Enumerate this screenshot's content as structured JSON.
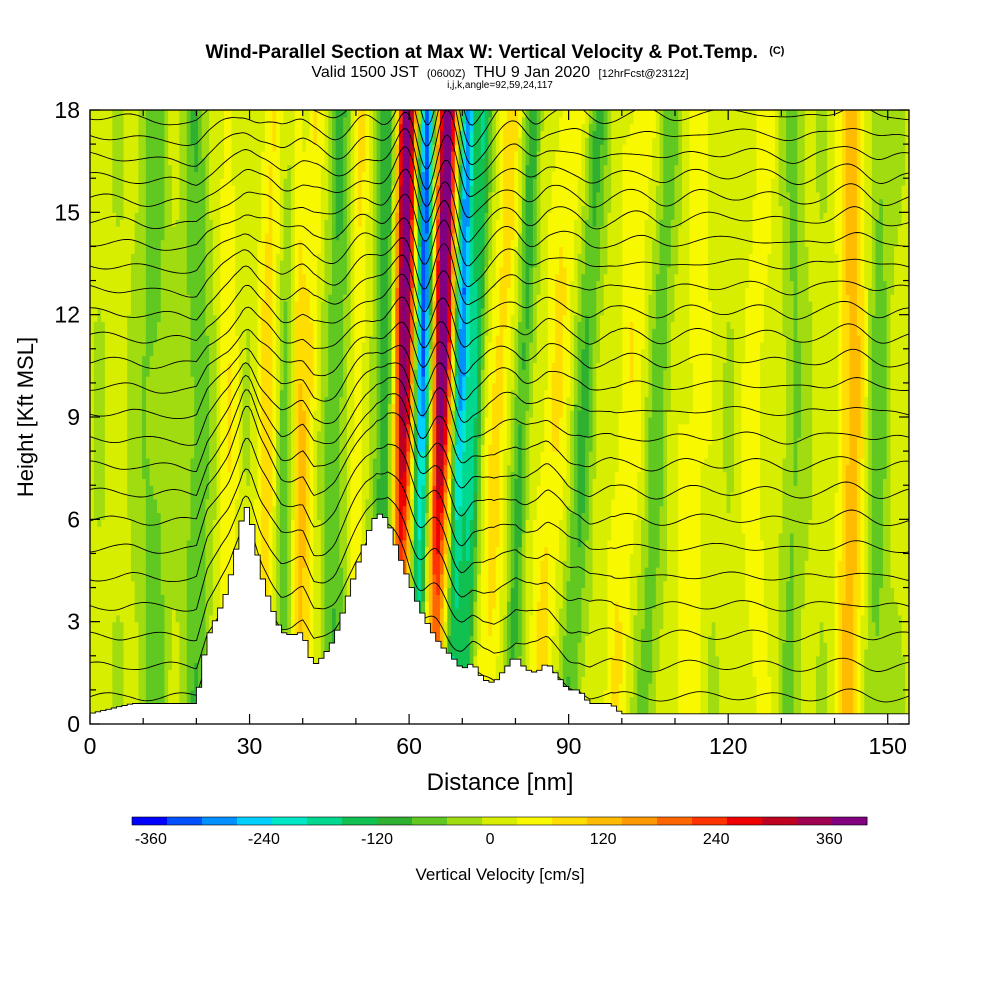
{
  "chart_data": {
    "type": "heatmap",
    "title": "Wind-Parallel Section at Max W: Vertical Velocity & Pot.Temp.",
    "title_mark": "(C)",
    "subtitle_main_1": "Valid 1500 JST",
    "subtitle_small_1": "(0600Z)",
    "subtitle_main_2": "THU 9 Jan 2020",
    "subtitle_small_2": "[12hrFcst@2312z]",
    "subtitle_line2": "i,j,k,angle=92,59,24,117",
    "xlabel": "Distance [nm]",
    "ylabel": "Height [Kft MSL]",
    "xlim": [
      0,
      154
    ],
    "ylim": [
      0,
      18
    ],
    "x_ticks": [
      0,
      30,
      60,
      90,
      120,
      150
    ],
    "y_ticks": [
      0,
      3,
      6,
      9,
      12,
      15,
      18
    ],
    "colorbar": {
      "label": "Vertical Velocity [cm/s]",
      "range": [
        -380,
        400
      ],
      "tick_values": [
        -360,
        -240,
        -120,
        0,
        120,
        240,
        360
      ],
      "tick_labels": [
        "-360",
        "-240",
        "-120",
        "0",
        "120",
        "240",
        "360"
      ],
      "colors": [
        "#0000ff",
        "#0050ff",
        "#0090ff",
        "#00d0ff",
        "#00e8c8",
        "#00d890",
        "#10c050",
        "#30b030",
        "#60c820",
        "#a0dc10",
        "#d8ee00",
        "#f8f800",
        "#ffdd00",
        "#ffbb00",
        "#ff9900",
        "#ff6600",
        "#ff3300",
        "#ee0000",
        "#c00020",
        "#a00050",
        "#800080"
      ]
    },
    "terrain_profile": {
      "x": [
        0,
        8,
        12,
        16,
        20,
        22,
        24,
        26,
        28,
        29,
        30,
        31,
        32,
        34,
        36,
        38,
        40,
        42,
        44,
        46,
        48,
        50,
        52,
        54,
        56,
        58,
        60,
        62,
        64,
        66,
        68,
        70,
        72,
        74,
        76,
        78,
        80,
        82,
        84,
        86,
        88,
        90,
        92,
        94,
        96,
        98,
        100,
        154
      ],
      "y": [
        0.3,
        0.6,
        0.6,
        0.6,
        0.6,
        2.5,
        3.2,
        4.0,
        5.5,
        6.4,
        6.3,
        5.4,
        4.5,
        3.5,
        2.7,
        2.6,
        2.7,
        1.7,
        2.0,
        2.5,
        3.5,
        4.5,
        5.5,
        6.2,
        6.0,
        5.0,
        4.2,
        3.4,
        2.8,
        2.3,
        2.0,
        1.6,
        1.8,
        1.3,
        1.2,
        1.6,
        2.0,
        1.6,
        1.5,
        1.8,
        1.4,
        1.0,
        1.0,
        0.6,
        0.6,
        0.6,
        0.3,
        0.3
      ]
    },
    "vertical_velocity_features": [
      {
        "x": 58.5,
        "halfwidth": 1.8,
        "amplitude": 420,
        "tilt_nm_per_kft": 0.1
      },
      {
        "x": 62.0,
        "halfwidth": 1.4,
        "amplitude": -340,
        "tilt_nm_per_kft": 0.12
      },
      {
        "x": 65.5,
        "halfwidth": 1.7,
        "amplitude": 430,
        "tilt_nm_per_kft": 0.15
      },
      {
        "x": 69.0,
        "halfwidth": 1.3,
        "amplitude": -300,
        "tilt_nm_per_kft": 0.18
      },
      {
        "x": 71.5,
        "halfwidth": 1.5,
        "amplitude": -150,
        "tilt_nm_per_kft": 0.2
      },
      {
        "x": 55.0,
        "halfwidth": 2.0,
        "amplitude": -120,
        "tilt_nm_per_kft": 0.1
      },
      {
        "x": 76.0,
        "halfwidth": 2.0,
        "amplitude": 80,
        "tilt_nm_per_kft": 0.3
      },
      {
        "x": 80.5,
        "halfwidth": 1.5,
        "amplitude": -100,
        "tilt_nm_per_kft": 0.25
      },
      {
        "x": 86.0,
        "halfwidth": 2.5,
        "amplitude": 70,
        "tilt_nm_per_kft": 0.35
      },
      {
        "x": 92.0,
        "halfwidth": 2.0,
        "amplitude": -80,
        "tilt_nm_per_kft": 0.3
      },
      {
        "x": 100.0,
        "halfwidth": 2.5,
        "amplitude": 60,
        "tilt_nm_per_kft": 0.3
      },
      {
        "x": 106.0,
        "halfwidth": 2.0,
        "amplitude": -60,
        "tilt_nm_per_kft": 0.25
      },
      {
        "x": 113.0,
        "halfwidth": 2.5,
        "amplitude": 50,
        "tilt_nm_per_kft": 0.2
      },
      {
        "x": 125.0,
        "halfwidth": 3.0,
        "amplitude": 40,
        "tilt_nm_per_kft": 0.1
      },
      {
        "x": 132.0,
        "halfwidth": 2.0,
        "amplitude": -50,
        "tilt_nm_per_kft": 0.05
      },
      {
        "x": 143.0,
        "halfwidth": 2.5,
        "amplitude": 120,
        "tilt_nm_per_kft": 0.05
      },
      {
        "x": 148.0,
        "halfwidth": 2.0,
        "amplitude": -60,
        "tilt_nm_per_kft": 0.05
      },
      {
        "x": 33.0,
        "halfwidth": 2.0,
        "amplitude": 80,
        "tilt_nm_per_kft": 0.1
      },
      {
        "x": 37.0,
        "halfwidth": 2.0,
        "amplitude": -70,
        "tilt_nm_per_kft": 0.1
      },
      {
        "x": 41.0,
        "halfwidth": 1.5,
        "amplitude": 60,
        "tilt_nm_per_kft": 0.1
      },
      {
        "x": 46.0,
        "halfwidth": 2.0,
        "amplitude": -80,
        "tilt_nm_per_kft": 0.1
      },
      {
        "x": 50.0,
        "halfwidth": 1.5,
        "amplitude": 60,
        "tilt_nm_per_kft": 0.1
      },
      {
        "x": 39.0,
        "halfwidth": 1.5,
        "amplitude": 110,
        "tilt_nm_per_kft": 0.0
      },
      {
        "x": 12.0,
        "halfwidth": 3.0,
        "amplitude": -60,
        "tilt_nm_per_kft": 0.0
      },
      {
        "x": 20.0,
        "halfwidth": 2.5,
        "amplitude": -70,
        "tilt_nm_per_kft": 0.0
      },
      {
        "x": 26.0,
        "halfwidth": 2.0,
        "amplitude": 50,
        "tilt_nm_per_kft": 0.0
      }
    ],
    "theta_contours": {
      "surface_height_kft": 0.3,
      "count": 30,
      "bottom_spacing_kft": 0.9,
      "top_spacing_kft": 0.48
    }
  }
}
